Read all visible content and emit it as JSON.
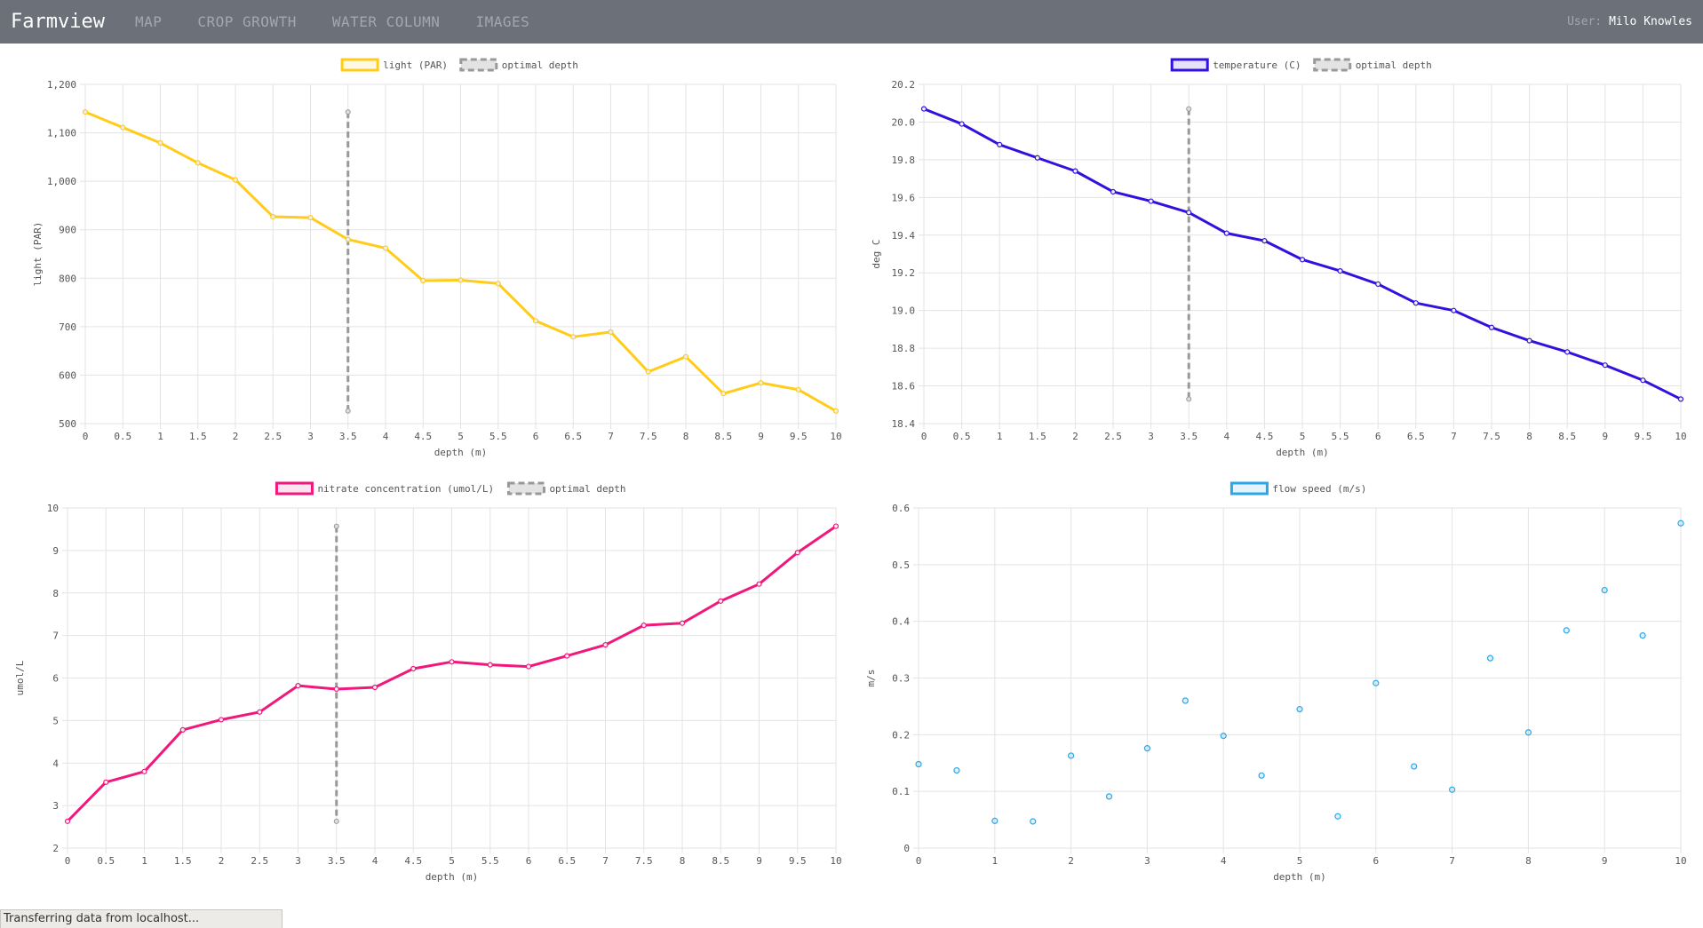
{
  "navbar": {
    "brand": "Farmview",
    "items": [
      "MAP",
      "CROP GROWTH",
      "WATER COLUMN",
      "IMAGES"
    ],
    "user_label": "User:",
    "user_name": "Milo Knowles"
  },
  "status_bar": {
    "text": "Transferring data from localhost..."
  },
  "chart_data": [
    {
      "type": "line",
      "x": [
        0,
        0.5,
        1,
        1.5,
        2,
        2.5,
        3,
        3.5,
        4,
        4.5,
        5,
        5.5,
        6,
        6.5,
        7,
        7.5,
        8,
        8.5,
        9,
        9.5,
        10
      ],
      "series": [
        {
          "name": "light (PAR)",
          "color": "#ffcc1a",
          "values": [
            1143,
            1111,
            1079,
            1038,
            1003,
            927,
            925,
            880,
            862,
            795,
            796,
            789,
            712,
            679,
            689,
            607,
            638,
            562,
            584,
            570,
            526
          ]
        }
      ],
      "optimal_depth": {
        "name": "optimal depth",
        "x": 3.5,
        "y_range": [
          526,
          1143
        ],
        "color": "#999999"
      },
      "xlabel": "depth (m)",
      "ylabel": "light (PAR)",
      "xlim": [
        0,
        10
      ],
      "ylim": [
        500,
        1200
      ],
      "yticks": [
        "500",
        "600",
        "700",
        "800",
        "900",
        "1,000",
        "1,100",
        "1,200"
      ],
      "xticks": [
        "0",
        "0.5",
        "1",
        "1.5",
        "2",
        "2.5",
        "3",
        "3.5",
        "4",
        "4.5",
        "5",
        "5.5",
        "6",
        "6.5",
        "7",
        "7.5",
        "8",
        "8.5",
        "9",
        "9.5",
        "10"
      ],
      "grid": true,
      "legend": "top-center"
    },
    {
      "type": "line",
      "x": [
        0,
        0.5,
        1,
        1.5,
        2,
        2.5,
        3,
        3.5,
        4,
        4.5,
        5,
        5.5,
        6,
        6.5,
        7,
        7.5,
        8,
        8.5,
        9,
        9.5,
        10
      ],
      "series": [
        {
          "name": "temperature (C)",
          "color": "#3311dd",
          "values": [
            20.07,
            19.99,
            19.88,
            19.81,
            19.74,
            19.63,
            19.58,
            19.52,
            19.41,
            19.37,
            19.27,
            19.21,
            19.14,
            19.04,
            19.0,
            18.91,
            18.84,
            18.78,
            18.71,
            18.63,
            18.53
          ]
        }
      ],
      "optimal_depth": {
        "name": "optimal depth",
        "x": 3.5,
        "y_range": [
          18.53,
          20.07
        ],
        "color": "#999999"
      },
      "xlabel": "depth (m)",
      "ylabel": "deg C",
      "xlim": [
        0,
        10
      ],
      "ylim": [
        18.4,
        20.2
      ],
      "yticks": [
        "18.4",
        "18.6",
        "18.8",
        "19.0",
        "19.2",
        "19.4",
        "19.6",
        "19.8",
        "20.0",
        "20.2"
      ],
      "xticks": [
        "0",
        "0.5",
        "1",
        "1.5",
        "2",
        "2.5",
        "3",
        "3.5",
        "4",
        "4.5",
        "5",
        "5.5",
        "6",
        "6.5",
        "7",
        "7.5",
        "8",
        "8.5",
        "9",
        "9.5",
        "10"
      ],
      "grid": true,
      "legend": "top-center"
    },
    {
      "type": "line",
      "x": [
        0,
        0.5,
        1,
        1.5,
        2,
        2.5,
        3,
        3.5,
        4,
        4.5,
        5,
        5.5,
        6,
        6.5,
        7,
        7.5,
        8,
        8.5,
        9,
        9.5,
        10
      ],
      "series": [
        {
          "name": "nitrate concentration (umol/L)",
          "color": "#f0187c",
          "values": [
            2.63,
            3.55,
            3.8,
            4.78,
            5.02,
            5.2,
            5.82,
            5.74,
            5.78,
            6.22,
            6.38,
            6.31,
            6.27,
            6.52,
            6.78,
            7.24,
            7.29,
            7.81,
            8.21,
            8.95,
            9.57
          ]
        }
      ],
      "optimal_depth": {
        "name": "optimal depth",
        "x": 3.5,
        "y_range": [
          2.63,
          9.57
        ],
        "color": "#999999"
      },
      "xlabel": "depth (m)",
      "ylabel": "umol/L",
      "xlim": [
        0,
        10
      ],
      "ylim": [
        2,
        10
      ],
      "yticks": [
        "2",
        "3",
        "4",
        "5",
        "6",
        "7",
        "8",
        "9",
        "10"
      ],
      "xticks": [
        "0",
        "0.5",
        "1",
        "1.5",
        "2",
        "2.5",
        "3",
        "3.5",
        "4",
        "4.5",
        "5",
        "5.5",
        "6",
        "6.5",
        "7",
        "7.5",
        "8",
        "8.5",
        "9",
        "9.5",
        "10"
      ],
      "grid": true,
      "legend": "top-center"
    },
    {
      "type": "scatter",
      "x": [
        0,
        0.5,
        1,
        1.5,
        2,
        2.5,
        3,
        3.5,
        4,
        4.5,
        5,
        5.5,
        6,
        6.5,
        7,
        7.5,
        8,
        8.5,
        9,
        9.5,
        10
      ],
      "series": [
        {
          "name": "flow speed (m/s)",
          "color": "#2aa7e8",
          "values": [
            0.148,
            0.137,
            0.048,
            0.047,
            0.163,
            0.091,
            0.176,
            0.26,
            0.198,
            0.128,
            0.245,
            0.056,
            0.291,
            0.144,
            0.103,
            0.335,
            0.204,
            0.384,
            0.455,
            0.375,
            0.573
          ]
        }
      ],
      "xlabel": "depth (m)",
      "ylabel": "m/s",
      "xlim": [
        0,
        10
      ],
      "ylim": [
        0,
        0.6
      ],
      "yticks": [
        "0",
        "0.1",
        "0.2",
        "0.3",
        "0.4",
        "0.5",
        "0.6"
      ],
      "xticks": [
        "0",
        "1",
        "2",
        "3",
        "4",
        "5",
        "6",
        "7",
        "8",
        "9",
        "10"
      ],
      "grid": true,
      "legend": "top-center"
    }
  ]
}
